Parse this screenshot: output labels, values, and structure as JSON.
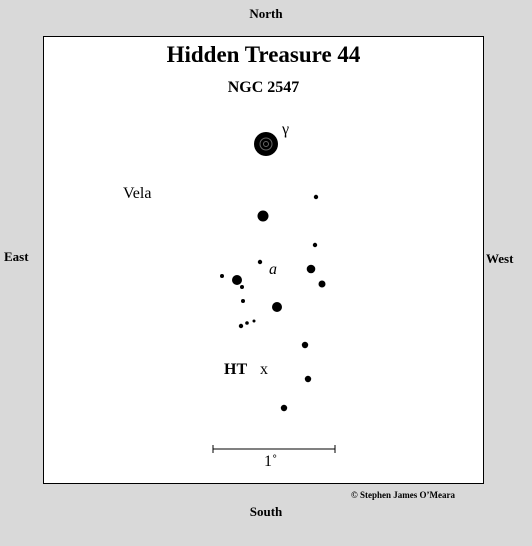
{
  "directions": {
    "north": "North",
    "south": "South",
    "east": "East",
    "west": "West"
  },
  "chart": {
    "title": "Hidden Treasure 44",
    "subtitle": "NGC 2547",
    "constellation_label": "Vela",
    "star_labels": {
      "gamma": "γ",
      "a": "a"
    },
    "target_label": "HT",
    "target_marker": "x",
    "scale_label": "1˚"
  },
  "credit": "© Stephen James O’Meara"
}
